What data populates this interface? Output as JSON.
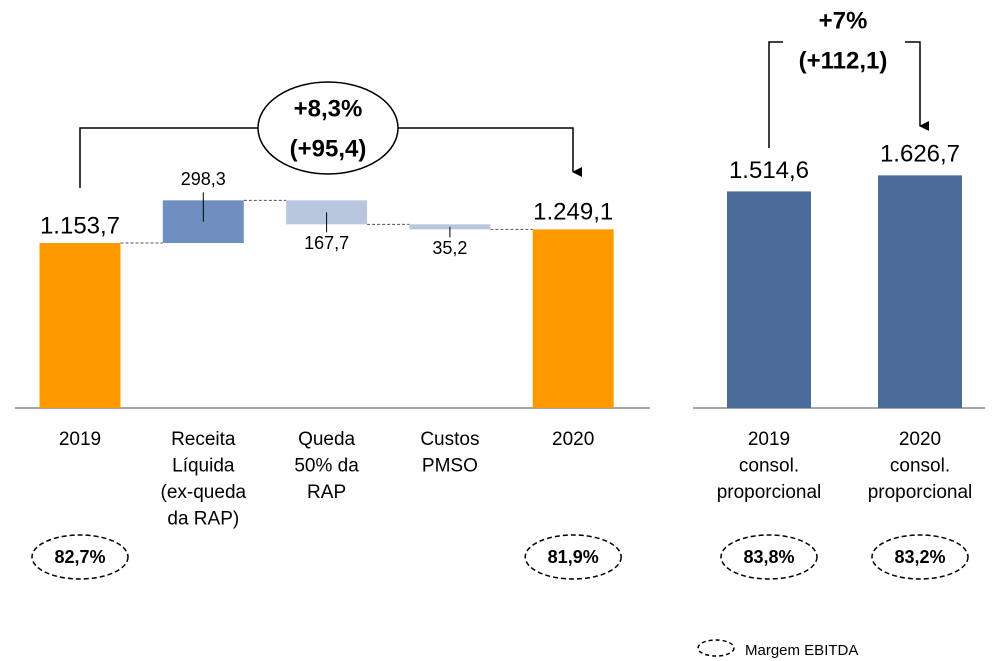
{
  "chart_data": [
    {
      "type": "waterfall",
      "categories": [
        [
          "2019"
        ],
        [
          "Receita",
          "Líquida",
          "(ex-queda",
          "da RAP)"
        ],
        [
          "Queda",
          "50% da",
          "RAP"
        ],
        [
          "Custos",
          "PMSO"
        ],
        [
          "2020"
        ]
      ],
      "measure": [
        "total",
        "increase",
        "decrease",
        "decrease",
        "total"
      ],
      "values": [
        1153.7,
        298.3,
        167.7,
        35.2,
        1249.1
      ],
      "value_labels": [
        "1.153,7",
        "298,3",
        "167,7",
        "35,2",
        "1.249,1"
      ],
      "colors": [
        "#FF9900",
        "#6E8FBF",
        "#B9C7DE",
        "#B9C7DE",
        "#FF9900"
      ],
      "margins": [
        82.7,
        null,
        null,
        null,
        81.9
      ],
      "margin_labels": [
        "82,7%",
        null,
        null,
        null,
        "81,9%"
      ],
      "annotation": [
        "+8,3%",
        "(+95,4)"
      ]
    },
    {
      "type": "bar",
      "categories": [
        [
          "2019",
          "consol.",
          "proporcional"
        ],
        [
          "2020",
          "consol.",
          "proporcional"
        ]
      ],
      "values": [
        1514.6,
        1626.7
      ],
      "value_labels": [
        "1.514,6",
        "1.626,7"
      ],
      "color": "#4A6A9A",
      "margins": [
        83.8,
        83.2
      ],
      "margin_labels": [
        "83,8%",
        "83,2%"
      ],
      "annotation": [
        "+7%",
        "(+112,1)"
      ]
    }
  ],
  "legend": "Margem EBITDA"
}
